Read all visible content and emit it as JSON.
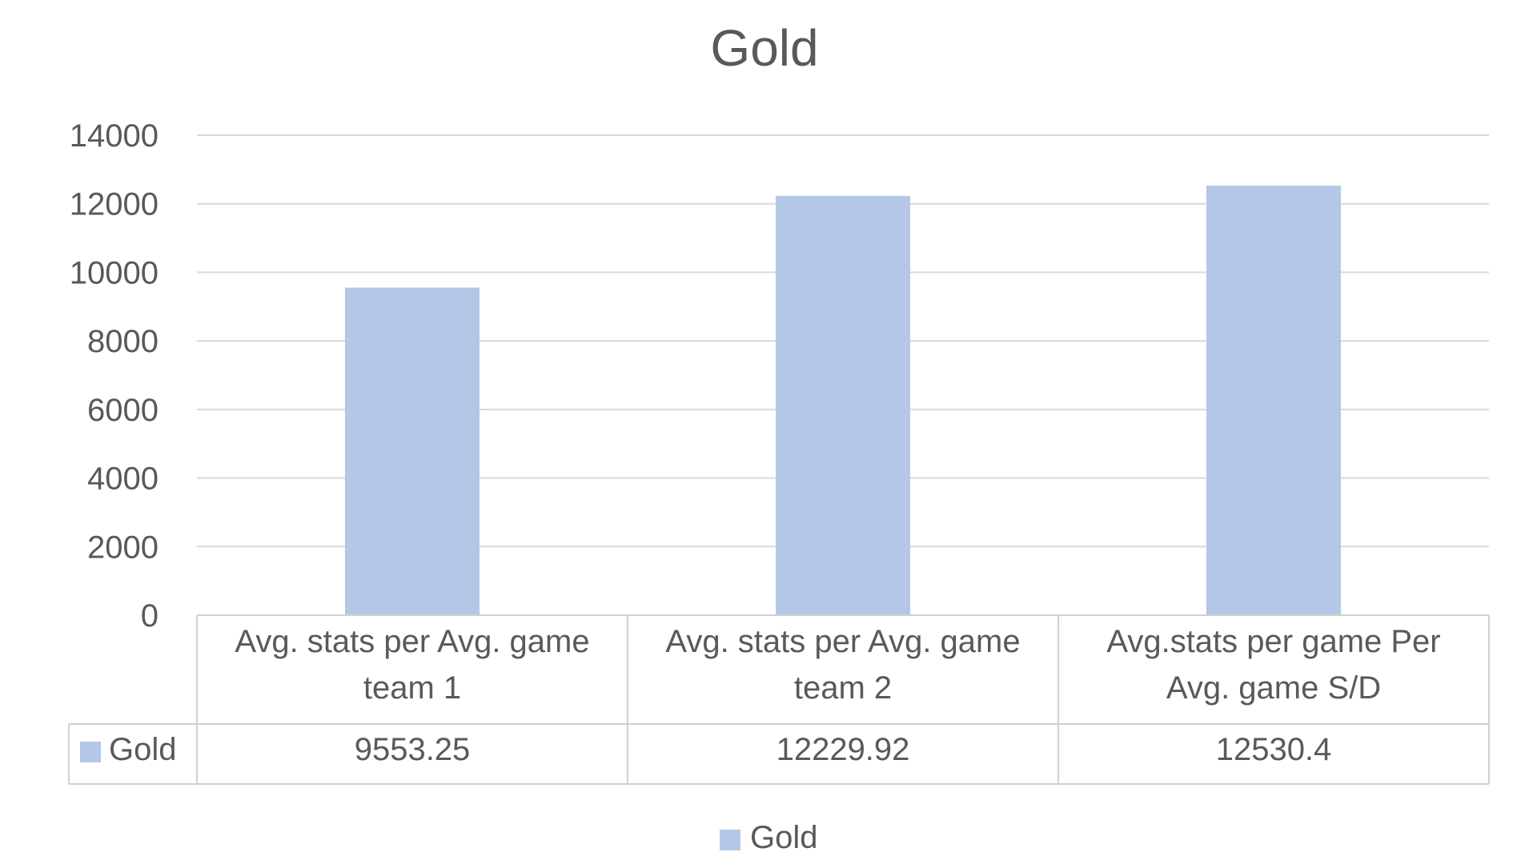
{
  "chart_data": {
    "type": "bar",
    "title": "Gold",
    "categories": [
      [
        "Avg. stats per Avg. game",
        "team 1"
      ],
      [
        "Avg. stats per Avg. game",
        "team 2"
      ],
      [
        "Avg.stats per game Per",
        "Avg. game S/D"
      ]
    ],
    "series": [
      {
        "name": "Gold",
        "values": [
          9553.25,
          12229.92,
          12530.4
        ],
        "labels": [
          "9553.25",
          "12229.92",
          "12530.4"
        ],
        "color": "#b4c7e7"
      }
    ],
    "yticks": [
      "0",
      "2000",
      "4000",
      "6000",
      "8000",
      "10000",
      "12000",
      "14000"
    ],
    "ylim": [
      0,
      14000
    ],
    "grid": true,
    "data_table": true,
    "legend_position": "bottom",
    "colors": {
      "text": "#595959",
      "grid": "#d9d9d9",
      "table_border": "#d0d0d0"
    }
  }
}
